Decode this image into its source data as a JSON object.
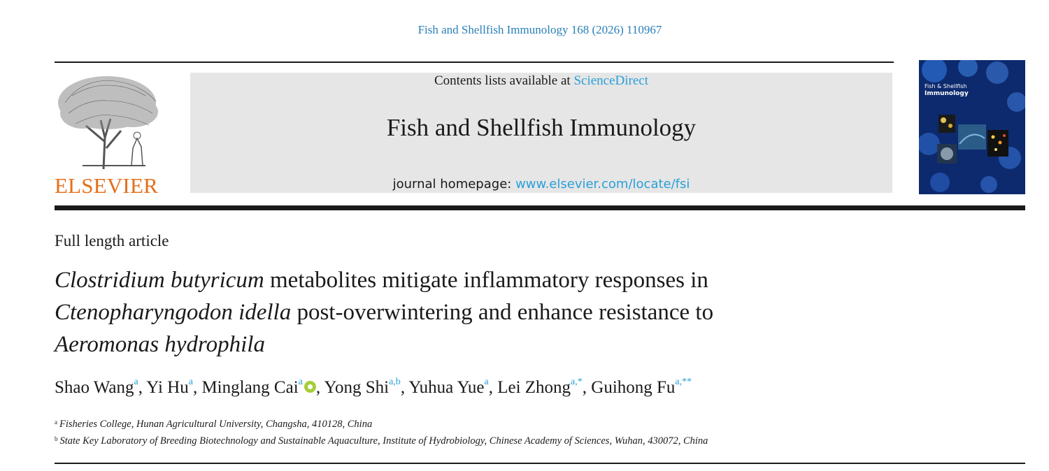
{
  "journal_reference": "Fish and Shellfish Immunology 168 (2026) 110967",
  "publisher_logo": {
    "icon": "elsevier-tree-logo",
    "text": "ELSEVIER",
    "color": "#e46f1b"
  },
  "masthead": {
    "contents_prefix": "Contents lists available at ",
    "contents_link": "ScienceDirect",
    "journal_title": "Fish and Shellfish Immunology",
    "homepage_prefix": "journal homepage: ",
    "homepage_link": "www.elsevier.com/locate/fsi"
  },
  "cover": {
    "icon": "journal-cover-image",
    "title_line1": "Fish & Shellfish",
    "title_line2": "Immunology"
  },
  "article_type": "Full length article",
  "title": {
    "part1_italic": "Clostridium butyricum",
    "part2": " metabolites mitigate inflammatory responses in",
    "part3_italic": "Ctenopharyngodon idella",
    "part4": " post-overwintering and enhance resistance to",
    "part5_italic": "Aeromonas hydrophila"
  },
  "authors": [
    {
      "name": "Shao Wang",
      "sup": "a",
      "sep": ", "
    },
    {
      "name": "Yi Hu",
      "sup": "a",
      "sep": ", "
    },
    {
      "name": "Minglang Cai",
      "sup": "a",
      "orcid": true,
      "sep": ", "
    },
    {
      "name": "Yong Shi",
      "sup": "a,b",
      "sep": ", "
    },
    {
      "name": "Yuhua Yue",
      "sup": "a",
      "sep": ", "
    },
    {
      "name": "Lei Zhong",
      "sup": "a,*",
      "sep": ", "
    },
    {
      "name": "Guihong Fu",
      "sup": "a,**",
      "sep": ""
    }
  ],
  "affiliations": [
    {
      "label": "a",
      "text": "Fisheries College, Hunan Agricultural University, Changsha, 410128, China"
    },
    {
      "label": "b",
      "text": "State Key Laboratory of Breeding Biotechnology and Sustainable Aquaculture, Institute of Hydrobiology, Chinese Academy of Sciences, Wuhan, 430072, China"
    }
  ],
  "colors": {
    "link": "#2a9fd8",
    "masthead_bg": "#e6e6e6",
    "orcid": "#a6ce39"
  }
}
